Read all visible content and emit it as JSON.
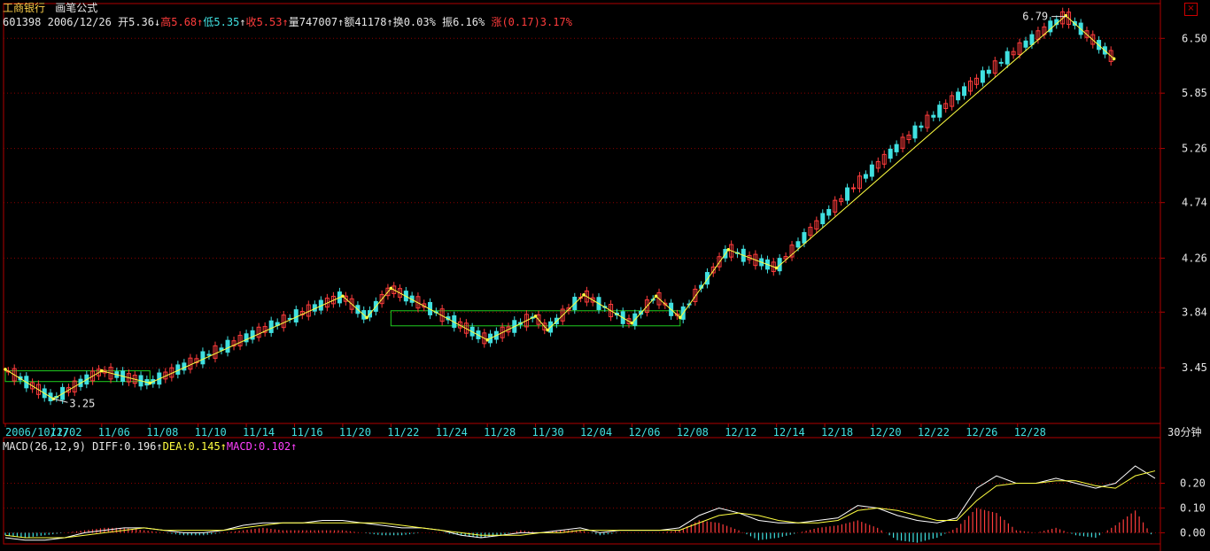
{
  "header": {
    "stock_name": "工商银行",
    "formula_name": "画笔公式",
    "code": "601398",
    "date": "2006/12/26",
    "open_label": "开",
    "open": "5.36",
    "high_label": "高",
    "high": "5.68",
    "low_label": "低",
    "low": "5.35",
    "close_label": "收",
    "close": "5.53",
    "volume_label": "量",
    "volume": "747007",
    "amount_label": "额",
    "amount": "41178",
    "turnover_label": "换",
    "turnover": "0.03%",
    "amplitude_label": "振",
    "amplitude": "6.16%",
    "change_label": "涨",
    "change": "(0.17)3.17%",
    "close_icon": "close-square-icon"
  },
  "macd": {
    "title": "MACD(26,12,9)",
    "diff_label": "DIFF:",
    "diff": "0.196",
    "dea_label": "DEA:",
    "dea": "0.145",
    "macd_label": "MACD:",
    "macd": "0.102"
  },
  "colors": {
    "background": "#000000",
    "grid": "#8b0000",
    "axis": "#b00000",
    "up": "#ff3c3c",
    "down": "#40e0e0",
    "pen_line": "#ffff40",
    "box": "#20d020",
    "diff_line": "#ffffff",
    "dea_line": "#ffff40"
  },
  "chart_data": [
    {
      "type": "candlestick",
      "period_label": "30分钟",
      "x_ticks": [
        "2006/10/27",
        "11/02",
        "11/06",
        "11/08",
        "11/10",
        "11/14",
        "11/16",
        "11/20",
        "11/22",
        "11/24",
        "11/28",
        "11/30",
        "12/04",
        "12/06",
        "12/08",
        "12/12",
        "12/14",
        "12/18",
        "12/20",
        "12/22",
        "12/26",
        "12/28"
      ],
      "y_ticks": [
        "6.50",
        "5.85",
        "5.26",
        "4.74",
        "4.26",
        "3.84",
        "3.45"
      ],
      "ylim": [
        3.1,
        6.95
      ],
      "scale": "log",
      "annotations": [
        {
          "text": "6.79",
          "date": "2006/12/29",
          "value": 6.79
        },
        {
          "text": "3.25",
          "date": "2006/11/02",
          "value": 3.25
        }
      ],
      "pen_pivots": [
        {
          "date": "2006/10/27",
          "value": 3.44
        },
        {
          "date": "2006/11/02",
          "value": 3.25
        },
        {
          "date": "2006/11/06",
          "value": 3.43
        },
        {
          "date": "2006/11/08",
          "value": 3.35
        },
        {
          "date": "2006/11/20",
          "value": 3.96
        },
        {
          "date": "2006/11/21",
          "value": 3.8
        },
        {
          "date": "2006/11/22",
          "value": 4.02
        },
        {
          "date": "2006/11/28",
          "value": 3.64
        },
        {
          "date": "2006/11/30",
          "value": 3.81
        },
        {
          "date": "2006/12/01",
          "value": 3.71
        },
        {
          "date": "2006/12/04",
          "value": 3.97
        },
        {
          "date": "2006/12/06",
          "value": 3.76
        },
        {
          "date": "2006/12/07",
          "value": 3.96
        },
        {
          "date": "2006/12/08",
          "value": 3.8
        },
        {
          "date": "2006/12/12",
          "value": 4.33
        },
        {
          "date": "2006/12/14",
          "value": 4.18
        },
        {
          "date": "2006/12/29",
          "value": 6.79
        },
        {
          "date": "2006/12/30",
          "value": 6.25
        }
      ],
      "boxes": [
        {
          "start": "2006/10/27",
          "end": "2006/11/08",
          "top": 3.43,
          "bottom": 3.36
        },
        {
          "start": "2006/11/22",
          "end": "2006/12/08",
          "top": 3.85,
          "bottom": 3.74
        }
      ]
    },
    {
      "type": "line",
      "title": "MACD(26,12,9)",
      "y_ticks": [
        "0.20",
        "0.10",
        "0.00"
      ],
      "ylim": [
        -0.045,
        0.32
      ],
      "series": [
        {
          "name": "DIFF",
          "values": [
            -0.02,
            -0.03,
            -0.03,
            -0.02,
            0.0,
            0.01,
            0.02,
            0.02,
            0.01,
            0.0,
            0.0,
            0.01,
            0.03,
            0.04,
            0.04,
            0.04,
            0.05,
            0.05,
            0.04,
            0.03,
            0.02,
            0.02,
            0.01,
            -0.01,
            -0.02,
            -0.01,
            0.0,
            0.0,
            0.01,
            0.02,
            0.0,
            0.01,
            0.01,
            0.01,
            0.02,
            0.07,
            0.1,
            0.08,
            0.05,
            0.04,
            0.04,
            0.05,
            0.06,
            0.11,
            0.1,
            0.07,
            0.05,
            0.04,
            0.06,
            0.18,
            0.23,
            0.2,
            0.2,
            0.22,
            0.2,
            0.18,
            0.2,
            0.27,
            0.22
          ]
        },
        {
          "name": "DEA",
          "values": [
            -0.01,
            -0.02,
            -0.02,
            -0.02,
            -0.01,
            0.0,
            0.01,
            0.02,
            0.01,
            0.01,
            0.01,
            0.01,
            0.02,
            0.03,
            0.04,
            0.04,
            0.04,
            0.04,
            0.04,
            0.04,
            0.03,
            0.02,
            0.01,
            0.0,
            -0.01,
            -0.01,
            -0.01,
            0.0,
            0.0,
            0.01,
            0.01,
            0.01,
            0.01,
            0.01,
            0.01,
            0.04,
            0.07,
            0.08,
            0.07,
            0.05,
            0.04,
            0.04,
            0.05,
            0.09,
            0.1,
            0.09,
            0.07,
            0.05,
            0.05,
            0.13,
            0.19,
            0.2,
            0.2,
            0.21,
            0.21,
            0.19,
            0.18,
            0.23,
            0.25
          ]
        },
        {
          "name": "MACD",
          "values": [
            -0.01,
            -0.02,
            -0.01,
            0.0,
            0.01,
            0.02,
            0.02,
            0.01,
            0.0,
            -0.01,
            -0.01,
            0.0,
            0.01,
            0.02,
            0.01,
            0.01,
            0.01,
            0.01,
            0.0,
            -0.01,
            -0.01,
            0.0,
            0.0,
            -0.01,
            -0.02,
            -0.01,
            0.01,
            0.0,
            0.01,
            0.01,
            -0.01,
            0.0,
            0.0,
            0.0,
            0.01,
            0.05,
            0.04,
            0.01,
            -0.03,
            -0.02,
            0.0,
            0.02,
            0.03,
            0.05,
            0.02,
            -0.03,
            -0.04,
            -0.02,
            0.02,
            0.1,
            0.08,
            0.01,
            0.0,
            0.02,
            -0.01,
            -0.02,
            0.03,
            0.09,
            -0.03
          ]
        }
      ]
    }
  ]
}
